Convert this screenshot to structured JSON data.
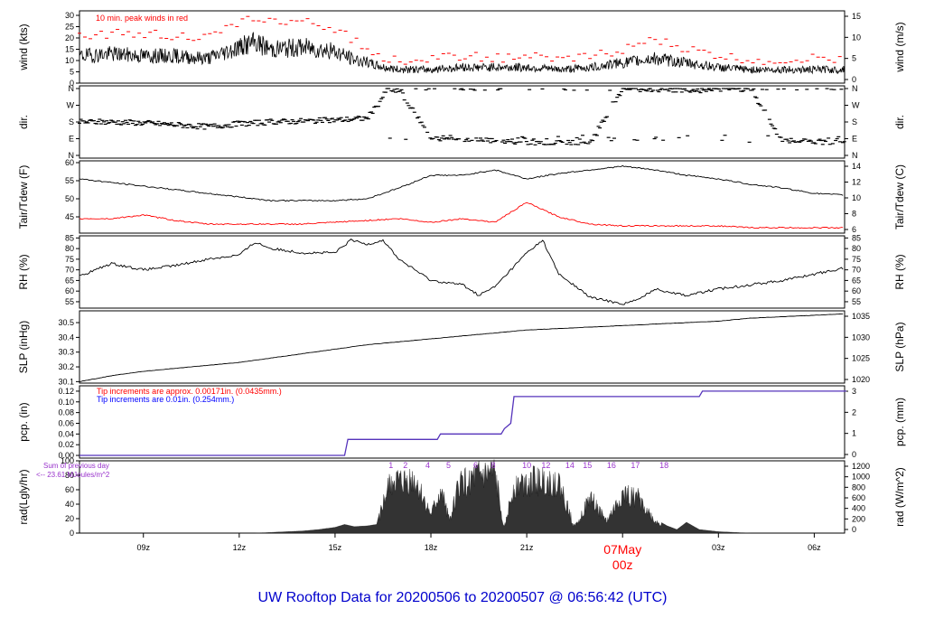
{
  "title": "UW Rooftop Data for 20200506  to  20200507 @ 06:56:42  (UTC)",
  "colors": {
    "red": "#ff0000",
    "blue": "#0000ff",
    "purple": "#9933cc",
    "title_blue": "#0000cc",
    "black": "#000000"
  },
  "x_axis": {
    "start_hour": 7.0,
    "end_hour": 30.95,
    "tick_hours": [
      9,
      12,
      15,
      18,
      21,
      24,
      27,
      30
    ],
    "tick_labels": [
      "09z",
      "12z",
      "15z",
      "18z",
      "21z",
      "",
      "03z",
      "06z"
    ],
    "day_marker": {
      "hour": 24,
      "line1": "07May",
      "line2": "00z"
    }
  },
  "notes": {
    "wind_peak": "10 min. peak winds in red",
    "pcp_red": "Tip increments are approx. 0.00171in. (0.0435mm.)",
    "pcp_blue": "Tip increments are 0.01in. (0.254mm.)",
    "rad_prev_line1": "Sum of previous day",
    "rad_prev_line2": "<-- 23.61 MJoules/m^2"
  },
  "chart_data": [
    {
      "type": "line",
      "panel": "wind",
      "ylabel": "wind (kts)",
      "ylabel_right": "wind (m/s)",
      "ylim": [
        0,
        32
      ],
      "yticks": [
        0,
        5,
        10,
        15,
        20,
        25,
        30
      ],
      "yticks_right": [
        0,
        5,
        10,
        15
      ],
      "series": [
        {
          "values_hour": [
            7,
            8,
            9,
            10,
            11,
            12,
            12.5,
            13,
            14,
            15,
            15.5,
            16,
            16.5,
            17,
            18,
            19,
            20,
            21,
            22,
            23,
            24,
            25,
            26,
            27,
            28,
            29,
            30,
            31
          ],
          "values": [
            12,
            13,
            12,
            12,
            11,
            16,
            18,
            15,
            16,
            14,
            11,
            9,
            7,
            6,
            6,
            7,
            7,
            7,
            6,
            7,
            9,
            11,
            9,
            7,
            6,
            6,
            6,
            6
          ]
        },
        {
          "name": "10 min. peak winds in red",
          "color": "#ff0000",
          "values_hour": [
            7,
            8,
            9,
            10,
            11,
            12,
            12.5,
            13,
            14,
            15,
            15.5,
            16,
            16.5,
            17,
            18,
            19,
            20,
            21,
            22,
            23,
            24,
            25,
            26,
            27,
            28,
            29,
            30,
            31
          ],
          "values": [
            21,
            22,
            22,
            21,
            20,
            26,
            30,
            27,
            27,
            24,
            20,
            15,
            11,
            10,
            11,
            12,
            11,
            12,
            10,
            12,
            15,
            19,
            15,
            12,
            10,
            10,
            11,
            11
          ]
        }
      ]
    },
    {
      "type": "scatter",
      "panel": "dir",
      "ylabel": "dir.",
      "ylabel_right": "dir.",
      "yticks_labels": [
        "N",
        "E",
        "S",
        "W",
        "N"
      ],
      "yticks": [
        0,
        90,
        180,
        270,
        360
      ],
      "series": [
        {
          "values_hour": [
            7,
            8,
            9,
            10,
            11,
            12,
            13,
            14,
            15,
            15.5,
            16,
            16.3,
            16.6,
            17,
            18,
            19,
            20,
            21,
            22,
            23,
            24,
            25,
            26,
            27,
            28,
            29,
            30,
            31
          ],
          "values": [
            180,
            180,
            175,
            165,
            155,
            170,
            180,
            185,
            190,
            195,
            200,
            260,
            350,
            355,
            100,
            80,
            80,
            70,
            70,
            75,
            360,
            355,
            350,
            355,
            360,
            80,
            75,
            70
          ]
        }
      ]
    },
    {
      "type": "line",
      "panel": "temp",
      "ylabel": "Tair/Tdew (F)",
      "ylabel_right": "Tair/Tdew (C)",
      "ylim": [
        40.5,
        60.5
      ],
      "yticks": [
        45,
        50,
        55,
        60
      ],
      "yticks_right": [
        6,
        8,
        10,
        12,
        14
      ],
      "series": [
        {
          "name": "Tair",
          "values_hour": [
            7,
            8,
            9,
            10,
            11,
            12,
            13,
            14,
            15,
            16,
            17,
            18,
            19,
            20,
            21,
            22,
            23,
            24,
            25,
            26,
            27,
            28,
            29,
            30,
            31
          ],
          "values": [
            55.5,
            54.5,
            53.5,
            52.5,
            51.5,
            50.5,
            49.5,
            49.5,
            49.5,
            50,
            53,
            56.5,
            56.5,
            58,
            55.5,
            57,
            58,
            59,
            58,
            56.5,
            55.5,
            54,
            53,
            51.5,
            51
          ]
        },
        {
          "name": "Tdew",
          "color": "#ff0000",
          "values_hour": [
            7,
            8,
            9,
            10,
            11,
            12,
            13,
            14,
            15,
            16,
            17,
            18,
            19,
            20,
            21,
            22,
            23,
            24,
            25,
            26,
            27,
            28,
            29,
            30,
            31
          ],
          "values": [
            44.5,
            44.5,
            45.5,
            44,
            43,
            43,
            43,
            43,
            43.5,
            44,
            44.5,
            43.5,
            44.5,
            43.5,
            49,
            45,
            43,
            42.5,
            42.5,
            42.5,
            42.5,
            42,
            42,
            42,
            42
          ]
        }
      ]
    },
    {
      "type": "line",
      "panel": "rh",
      "ylabel": "RH (%)",
      "ylabel_right": "RH (%)",
      "ylim": [
        52,
        86
      ],
      "yticks": [
        55,
        60,
        65,
        70,
        75,
        80,
        85
      ],
      "series": [
        {
          "values_hour": [
            7,
            8,
            9,
            10,
            11,
            12,
            12.5,
            13,
            14,
            15,
            15.5,
            16,
            16.5,
            17,
            18,
            19,
            19.5,
            20,
            21,
            21.5,
            22,
            23,
            24,
            24.5,
            25,
            26,
            27,
            28,
            29,
            30,
            31
          ],
          "values": [
            67,
            73,
            70,
            72,
            75,
            77,
            83,
            80,
            78,
            78,
            84,
            82,
            84,
            75,
            65,
            63,
            58,
            62,
            78,
            84,
            68,
            57,
            54,
            56,
            61,
            58,
            61,
            63,
            65,
            68,
            71
          ]
        }
      ]
    },
    {
      "type": "line",
      "panel": "slp",
      "ylabel": "SLP (inHg)",
      "ylabel_right": "SLP (hPa)",
      "ylim": [
        30.09,
        30.58
      ],
      "yticks": [
        30.1,
        30.2,
        30.3,
        30.4,
        30.5
      ],
      "yticks_right": [
        1020,
        1025,
        1030,
        1035
      ],
      "series": [
        {
          "values_hour": [
            7,
            8,
            9,
            10,
            11,
            12,
            13,
            14,
            15,
            16,
            17,
            18,
            19,
            20,
            21,
            22,
            23,
            24,
            25,
            26,
            27,
            28,
            29,
            30,
            31
          ],
          "values": [
            30.1,
            30.14,
            30.17,
            30.19,
            30.21,
            30.23,
            30.26,
            30.29,
            30.32,
            30.35,
            30.37,
            30.39,
            30.41,
            30.43,
            30.45,
            30.46,
            30.47,
            30.48,
            30.49,
            30.5,
            30.51,
            30.53,
            30.54,
            30.55,
            30.56
          ]
        }
      ]
    },
    {
      "type": "line",
      "panel": "pcp",
      "ylabel": "pcp. (in)",
      "ylabel_right": "pcp. (mm)",
      "ylim": [
        -0.005,
        0.13
      ],
      "yticks": [
        0,
        0.02,
        0.04,
        0.06,
        0.08,
        0.1,
        0.12
      ],
      "yticks_right": [
        0,
        1,
        2,
        3
      ],
      "series": [
        {
          "name": "pcp",
          "color": "#5533bb",
          "values_hour": [
            7,
            15.3,
            15.4,
            18.2,
            18.3,
            20.2,
            20.3,
            20.5,
            20.6,
            26.4,
            26.5,
            31
          ],
          "values": [
            0,
            0,
            0.03,
            0.03,
            0.04,
            0.04,
            0.05,
            0.06,
            0.11,
            0.11,
            0.12,
            0.12
          ]
        }
      ]
    },
    {
      "type": "area",
      "panel": "rad",
      "ylabel": "rad(Lgly/hr)",
      "ylabel_right": "rad (W/m^2)",
      "ylim": [
        0,
        100
      ],
      "yticks": [
        0,
        20,
        40,
        60,
        80,
        100
      ],
      "yticks_right": [
        0,
        200,
        400,
        600,
        800,
        1000,
        1200
      ],
      "peak_labels": [
        "1",
        "2",
        "4",
        "5",
        "6",
        "8",
        "10",
        "12",
        "14",
        "15",
        "16",
        "17",
        "18"
      ],
      "peak_hours": [
        16.75,
        17.2,
        17.9,
        18.55,
        19.4,
        19.95,
        21.0,
        21.6,
        22.35,
        22.9,
        23.65,
        24.4,
        25.3
      ],
      "series": [
        {
          "values_hour": [
            12.5,
            13,
            14,
            14.5,
            15,
            15.3,
            15.6,
            16,
            16.3,
            16.5,
            16.8,
            17,
            17.5,
            18,
            18.3,
            18.6,
            18.9,
            19.2,
            19.5,
            20,
            20.3,
            20.6,
            21,
            21.5,
            22,
            22.5,
            23,
            23.5,
            24,
            24.5,
            25,
            25.4,
            25.7,
            26,
            26.4,
            27,
            27.5,
            28
          ],
          "values": [
            0,
            1,
            3,
            5,
            8,
            12,
            9,
            10,
            12,
            50,
            95,
            85,
            90,
            30,
            70,
            25,
            85,
            90,
            95,
            100,
            10,
            80,
            90,
            88,
            85,
            10,
            60,
            20,
            65,
            60,
            20,
            10,
            5,
            15,
            5,
            2,
            1,
            0
          ]
        }
      ]
    }
  ]
}
